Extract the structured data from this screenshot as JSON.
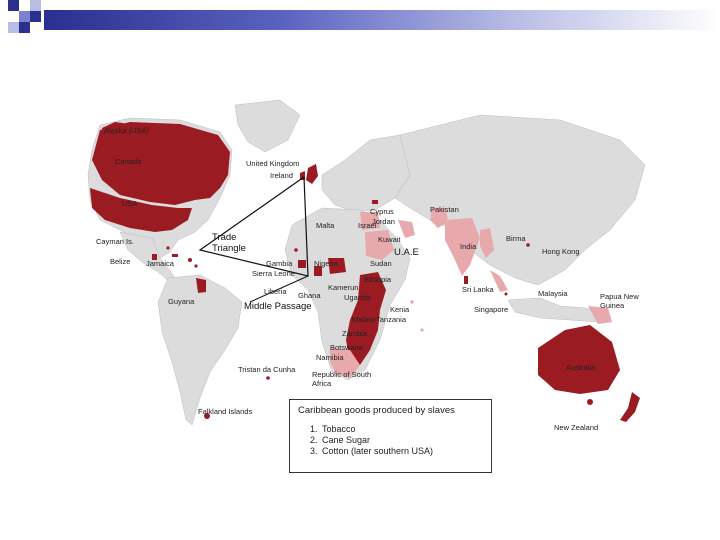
{
  "slide": {
    "accent_dark": "#2b2f8f",
    "accent_light": "#b9bde6"
  },
  "map": {
    "land_color": "#dcdcdc",
    "ocean_color": "#ffffff",
    "colony_color": "#9b1b22",
    "protectorate_color": "#e8a9ad",
    "labels": {
      "alaska": "Alaska (USA)",
      "canada": "Canada",
      "usa": "USA",
      "cayman": "Cayman Is.",
      "belize": "Belize",
      "jamaica": "Jamaica",
      "guyana": "Guyana",
      "falkland": "Falkland Islands",
      "tristan": "Tristan da Cunha",
      "uk": "United Kingdom",
      "ireland": "Ireland",
      "cyprus": "Cyprus",
      "malta": "Malta",
      "israel": "Israel",
      "jordan": "Jordan",
      "kuwait": "Kuwait",
      "uae": "U.A.E",
      "pakistan": "Pakistan",
      "india": "India",
      "birma": "Birma",
      "hongkong": "Hong Kong",
      "srilanka": "Sri Lanka",
      "malaysia": "Malaysia",
      "singapore": "Singapore",
      "papua": "Papua New Guinea",
      "australia": "Australia",
      "newzealand": "New Zealand",
      "gambia": "Gambia",
      "sierraleone": "Sierra Leone",
      "liberia": "Liberia",
      "ghana": "Ghana",
      "nigeria": "Nigeria",
      "kamerun": "Kamerun",
      "sudan": "Sudan",
      "ethiopia": "Ethiopia",
      "uganda": "Uganda",
      "kenia": "Kenia",
      "tanzania": "Tanzania",
      "malawi": "Malawi",
      "zambia": "Zambia",
      "namibia": "Namibia",
      "botswana": "Botswana",
      "southafrica": "Republic of South Africa"
    },
    "trade_triangle": "Trade Triangle",
    "middle_passage": "Middle Passage"
  },
  "legend": {
    "title": "Caribbean goods produced by slaves",
    "items": [
      "Tobacco",
      "Cane Sugar",
      "Cotton (later southern USA)"
    ]
  }
}
